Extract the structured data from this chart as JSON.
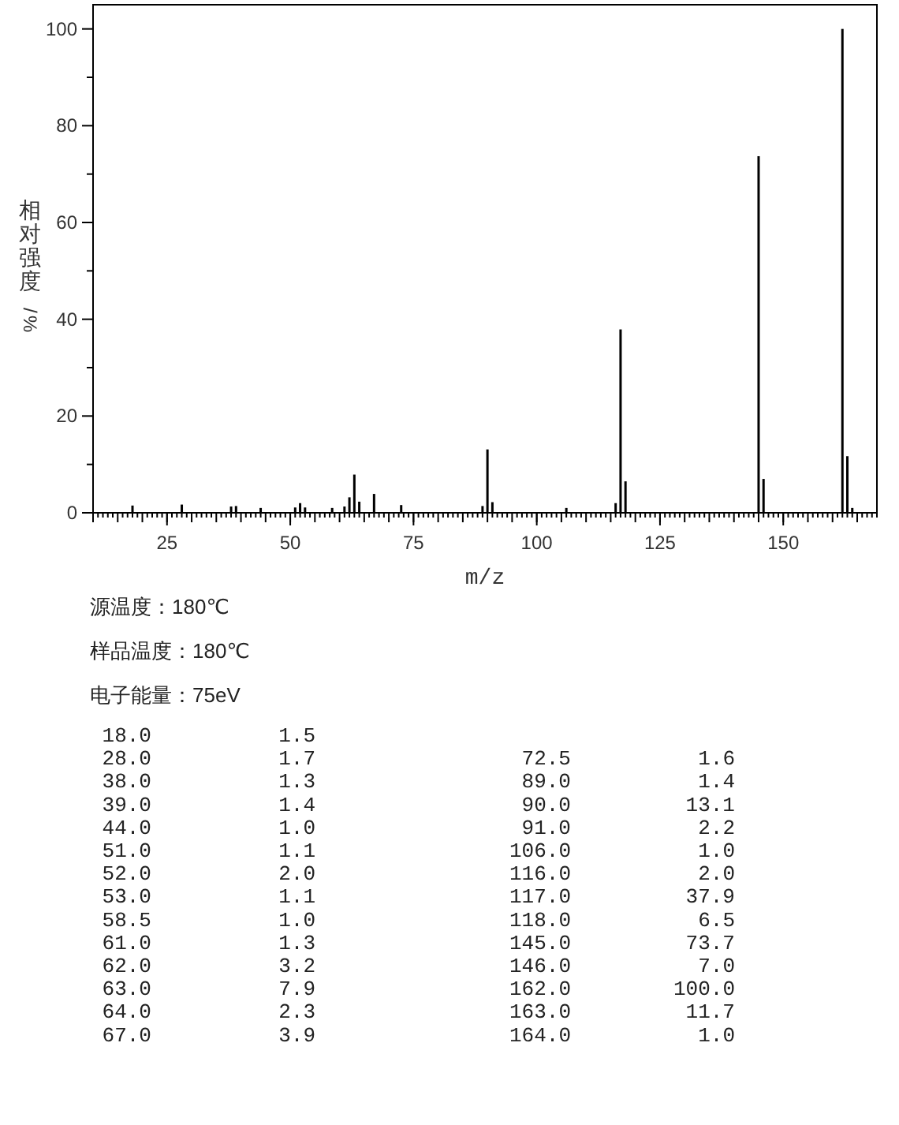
{
  "chart_data": {
    "type": "bar",
    "xlabel": "m/z",
    "ylabel": "相对强度/%",
    "color": "#000000",
    "x": [
      18.0,
      28.0,
      38.0,
      39.0,
      44.0,
      51.0,
      52.0,
      53.0,
      58.5,
      61.0,
      62.0,
      63.0,
      64.0,
      67.0,
      72.5,
      89.0,
      90.0,
      91.0,
      106.0,
      116.0,
      117.0,
      118.0,
      145.0,
      146.0,
      162.0,
      163.0,
      164.0
    ],
    "values": [
      1.5,
      1.7,
      1.3,
      1.4,
      1.0,
      1.1,
      2.0,
      1.1,
      1.0,
      1.3,
      3.2,
      7.9,
      2.3,
      3.9,
      1.6,
      1.4,
      13.1,
      2.2,
      1.0,
      2.0,
      37.9,
      6.5,
      73.7,
      7.0,
      100.0,
      11.7,
      1.0
    ],
    "xlim": [
      10,
      169
    ],
    "xticks": [
      25,
      50,
      75,
      100,
      125,
      150
    ],
    "ylim": [
      0,
      105
    ],
    "yticks": [
      0,
      20,
      40,
      60,
      80,
      100
    ],
    "annotations": [
      "源温度：180℃",
      "样品温度：180℃",
      "电子能量：75eV",
      "18.0",
      "1.5",
      "28.0",
      "1.7",
      "38.0",
      "1.3",
      "39.0",
      "1.4",
      "44.0",
      "1.0",
      "51.0",
      "1.1",
      "52.0",
      "2.0",
      "53.0",
      "1.1",
      "58.5",
      "1.0",
      "61.0",
      "1.3",
      "62.0",
      "3.2",
      "63.0",
      "7.9",
      "64.0",
      "2.3",
      "67.0",
      "3.9",
      "72.5",
      "1.6",
      "89.0",
      "1.4",
      "90.0",
      "13.1",
      "91.0",
      "2.2",
      "106.0",
      "1.0",
      "116.0",
      "2.0",
      "117.0",
      "37.9",
      "118.0",
      "6.5",
      "145.0",
      "73.7",
      "146.0",
      "7.0",
      "162.0",
      "100.0",
      "163.0",
      "11.7",
      "164.0",
      "1.0"
    ]
  }
}
